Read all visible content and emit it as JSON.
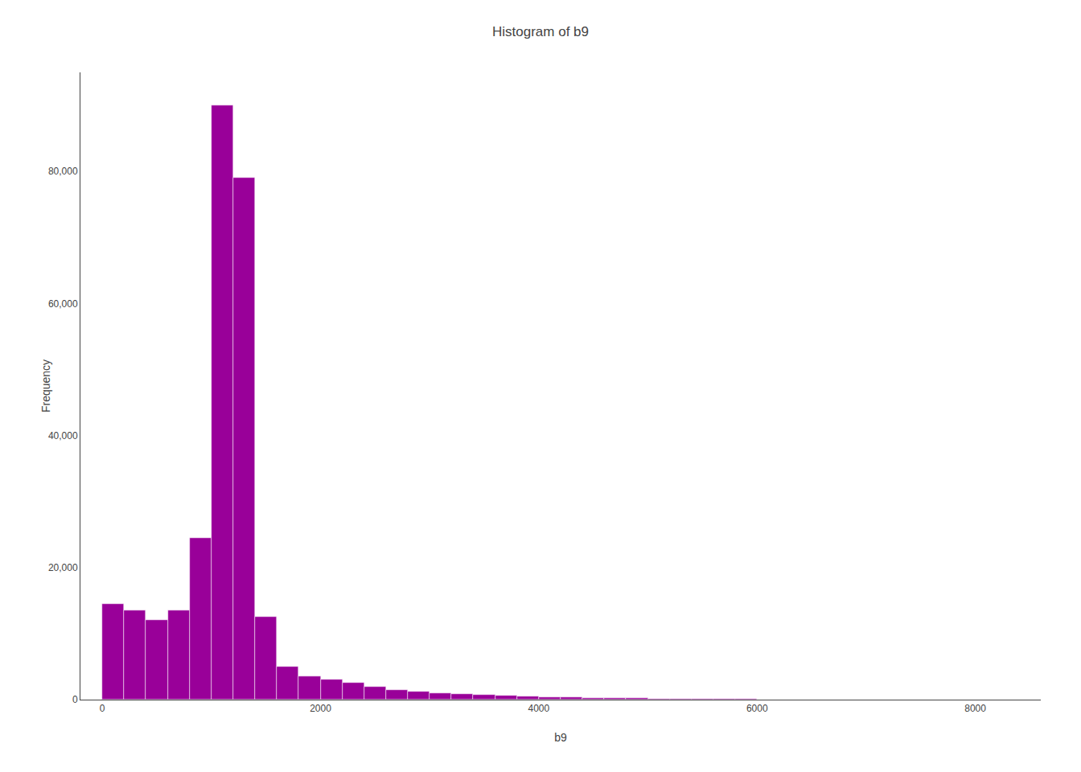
{
  "chart_data": {
    "type": "histogram",
    "title": "Histogram of b9",
    "xlabel": "b9",
    "ylabel": "Frequency",
    "color": "#990099",
    "bins": [
      0,
      200,
      400,
      600,
      800,
      1000,
      1200,
      1400,
      1600,
      1800,
      2000,
      2200,
      2400,
      2600,
      2800,
      3000,
      3200,
      3400,
      3600,
      3800,
      4000,
      4200,
      4400,
      4600,
      4800,
      5000,
      5200,
      5400,
      5600,
      5800,
      6000,
      6200,
      6400,
      6600,
      6800,
      7000,
      7200,
      7400,
      7600,
      7800,
      8000,
      8200
    ],
    "values": [
      14500,
      13500,
      12000,
      13500,
      24500,
      90000,
      79000,
      12500,
      5000,
      3500,
      3000,
      2500,
      2000,
      1500,
      1200,
      1000,
      800,
      700,
      600,
      500,
      400,
      350,
      300,
      250,
      200,
      180,
      150,
      120,
      100,
      80,
      60,
      50,
      40,
      30,
      20,
      15,
      10,
      8,
      5,
      3,
      2
    ],
    "xlim": [
      -200,
      8600
    ],
    "ylim": [
      0,
      95000
    ],
    "xticks": [
      0,
      2000,
      4000,
      6000,
      8000
    ],
    "yticks": [
      0,
      {
        "value": 20000,
        "label": "20,000"
      },
      {
        "value": 40000,
        "label": "40,000"
      },
      {
        "value": 60000,
        "label": "60,000"
      },
      {
        "value": 80000,
        "label": "80,000"
      }
    ],
    "grid": false
  }
}
